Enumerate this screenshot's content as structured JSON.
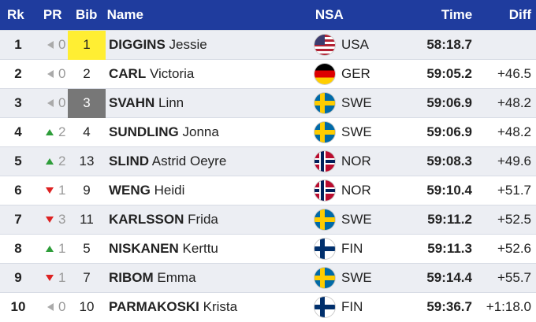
{
  "header": {
    "rk": "Rk",
    "pr": "PR",
    "bib": "Bib",
    "name": "Name",
    "nsa": "NSA",
    "time": "Time",
    "diff": "Diff"
  },
  "colors": {
    "header_bg": "#1f3c9e",
    "leader_bib": "#ffee33",
    "third_bib": "#777777",
    "up": "#2e9d3a",
    "down": "#dd2222",
    "same": "#aaaaaa"
  },
  "rows": [
    {
      "rk": "1",
      "pr_dir": "same",
      "pr": "0",
      "bib": "1",
      "bib_style": "yellow",
      "surname": "DIGGINS",
      "given": "Jessie",
      "nsa": "USA",
      "flag": "usa-flag-icon",
      "time": "58:18.7",
      "diff": ""
    },
    {
      "rk": "2",
      "pr_dir": "same",
      "pr": "0",
      "bib": "2",
      "bib_style": "none",
      "surname": "CARL",
      "given": "Victoria",
      "nsa": "GER",
      "flag": "germany-flag-icon",
      "time": "59:05.2",
      "diff": "+46.5"
    },
    {
      "rk": "3",
      "pr_dir": "same",
      "pr": "0",
      "bib": "3",
      "bib_style": "gray",
      "surname": "SVAHN",
      "given": "Linn",
      "nsa": "SWE",
      "flag": "sweden-flag-icon",
      "time": "59:06.9",
      "diff": "+48.2"
    },
    {
      "rk": "4",
      "pr_dir": "up",
      "pr": "2",
      "bib": "4",
      "bib_style": "none",
      "surname": "SUNDLING",
      "given": "Jonna",
      "nsa": "SWE",
      "flag": "sweden-flag-icon",
      "time": "59:06.9",
      "diff": "+48.2"
    },
    {
      "rk": "5",
      "pr_dir": "up",
      "pr": "2",
      "bib": "13",
      "bib_style": "none",
      "surname": "SLIND",
      "given": "Astrid Oeyre",
      "nsa": "NOR",
      "flag": "norway-flag-icon",
      "time": "59:08.3",
      "diff": "+49.6"
    },
    {
      "rk": "6",
      "pr_dir": "down",
      "pr": "1",
      "bib": "9",
      "bib_style": "none",
      "surname": "WENG",
      "given": "Heidi",
      "nsa": "NOR",
      "flag": "norway-flag-icon",
      "time": "59:10.4",
      "diff": "+51.7"
    },
    {
      "rk": "7",
      "pr_dir": "down",
      "pr": "3",
      "bib": "11",
      "bib_style": "none",
      "surname": "KARLSSON",
      "given": "Frida",
      "nsa": "SWE",
      "flag": "sweden-flag-icon",
      "time": "59:11.2",
      "diff": "+52.5"
    },
    {
      "rk": "8",
      "pr_dir": "up",
      "pr": "1",
      "bib": "5",
      "bib_style": "none",
      "surname": "NISKANEN",
      "given": "Kerttu",
      "nsa": "FIN",
      "flag": "finland-flag-icon",
      "time": "59:11.3",
      "diff": "+52.6"
    },
    {
      "rk": "9",
      "pr_dir": "down",
      "pr": "1",
      "bib": "7",
      "bib_style": "none",
      "surname": "RIBOM",
      "given": "Emma",
      "nsa": "SWE",
      "flag": "sweden-flag-icon",
      "time": "59:14.4",
      "diff": "+55.7"
    },
    {
      "rk": "10",
      "pr_dir": "same",
      "pr": "0",
      "bib": "10",
      "bib_style": "none",
      "surname": "PARMAKOSKI",
      "given": "Krista",
      "nsa": "FIN",
      "flag": "finland-flag-icon",
      "time": "59:36.7",
      "diff": "+1:18.0"
    }
  ]
}
